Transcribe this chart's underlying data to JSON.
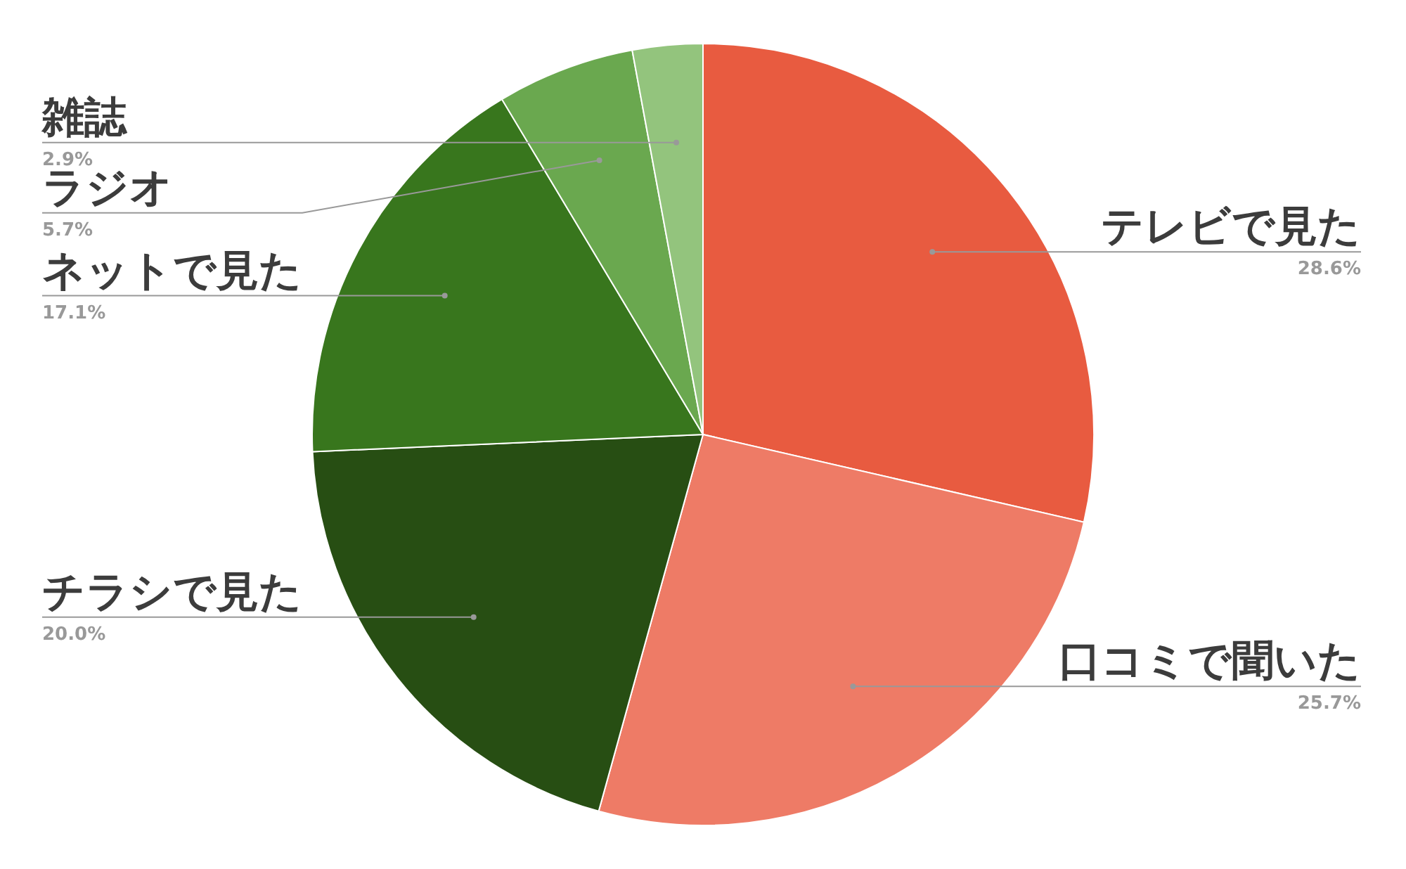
{
  "chart_data": {
    "type": "pie",
    "categories": [
      "テレビで見た",
      "口コミで聞いた",
      "チラシで見た",
      "ネットで見た",
      "ラジオ",
      "雑誌"
    ],
    "values": [
      28.6,
      25.7,
      20.0,
      17.1,
      5.7,
      2.9
    ],
    "colors": [
      "#e85b40",
      "#ee7b66",
      "#274e13",
      "#38761d",
      "#6aa84f",
      "#93c47d"
    ],
    "value_labels": [
      "28.6%",
      "25.7%",
      "20.0%",
      "17.1%",
      "5.7%",
      "2.9%"
    ]
  }
}
